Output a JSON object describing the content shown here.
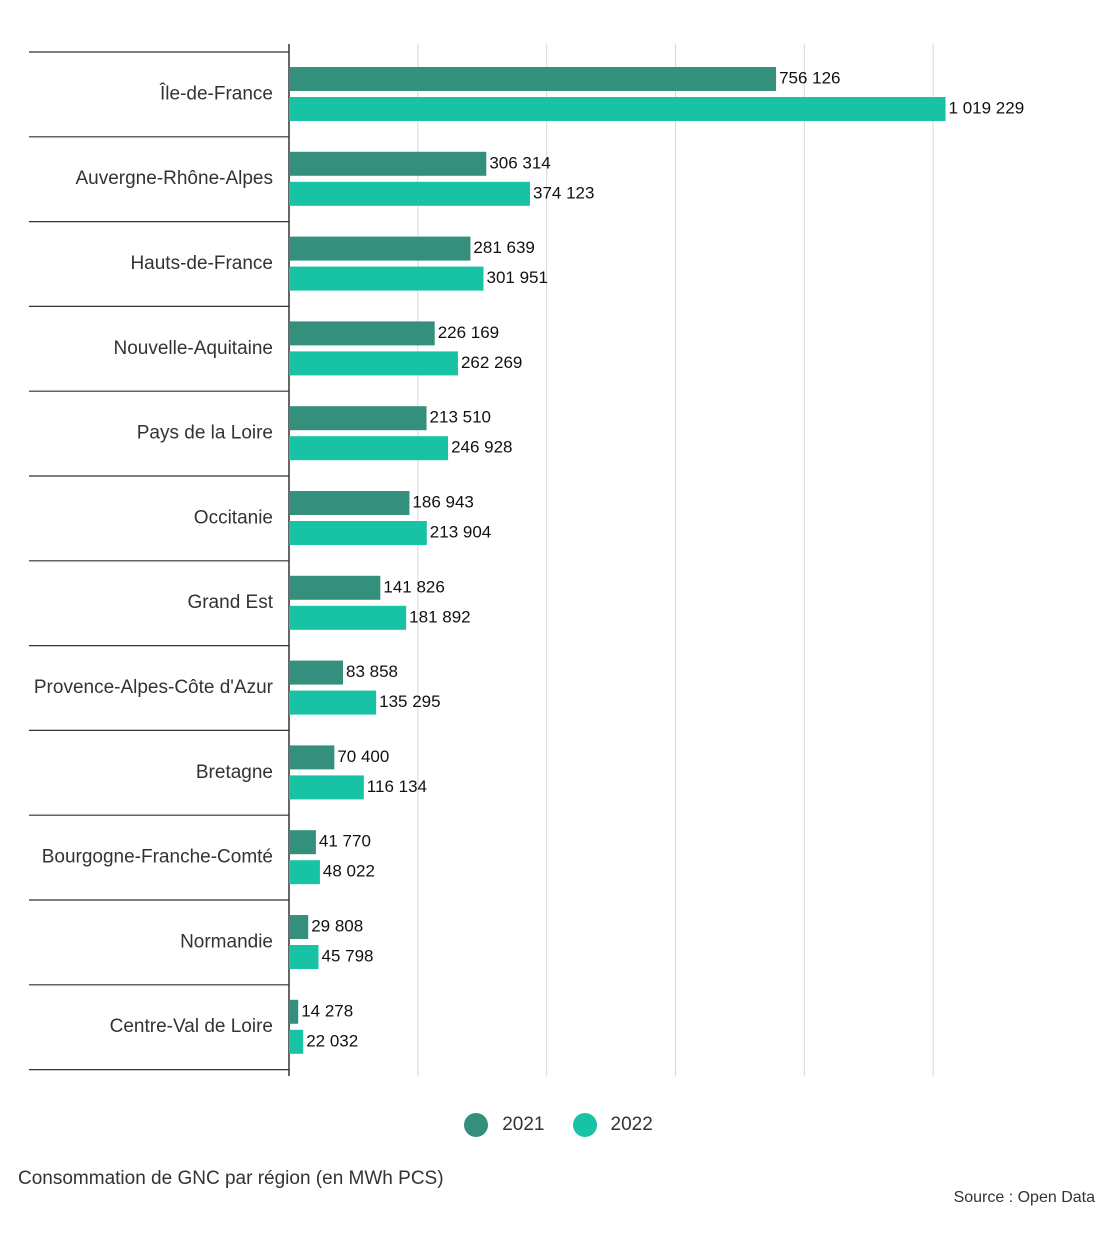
{
  "chart_data": {
    "type": "bar",
    "orientation": "horizontal",
    "categories": [
      "Île-de-France",
      "Auvergne-Rhône-Alpes",
      "Hauts-de-France",
      "Nouvelle-Aquitaine",
      "Pays de la Loire",
      "Occitanie",
      "Grand Est",
      "Provence-Alpes-Côte d'Azur",
      "Bretagne",
      "Bourgogne-Franche-Comté",
      "Normandie",
      "Centre-Val de Loire"
    ],
    "series": [
      {
        "name": "2021",
        "color": "#358f7d",
        "values": [
          756126,
          306314,
          281639,
          226169,
          213510,
          186943,
          141826,
          83858,
          70400,
          41770,
          29808,
          14278
        ],
        "labels": [
          "756 126",
          "306 314",
          "281 639",
          "226 169",
          "213 510",
          "186 943",
          "141 826",
          "83 858",
          "70 400",
          "41 770",
          "29 808",
          "14 278"
        ]
      },
      {
        "name": "2022",
        "color": "#17c3a4",
        "values": [
          1019229,
          374123,
          301951,
          262269,
          246928,
          213904,
          181892,
          135295,
          116134,
          48022,
          45798,
          22032
        ],
        "labels": [
          "1 019 229",
          "374 123",
          "301 951",
          "262 269",
          "246 928",
          "213 904",
          "181 892",
          "135 295",
          "116 134",
          "48 022",
          "45 798",
          "22 032"
        ]
      }
    ],
    "xlim": [
      0,
      1200000
    ],
    "grid": true,
    "legend_position": "bottom-center",
    "caption": "Consommation de GNC par région (en MWh PCS)",
    "source": "Source : Open Data"
  }
}
